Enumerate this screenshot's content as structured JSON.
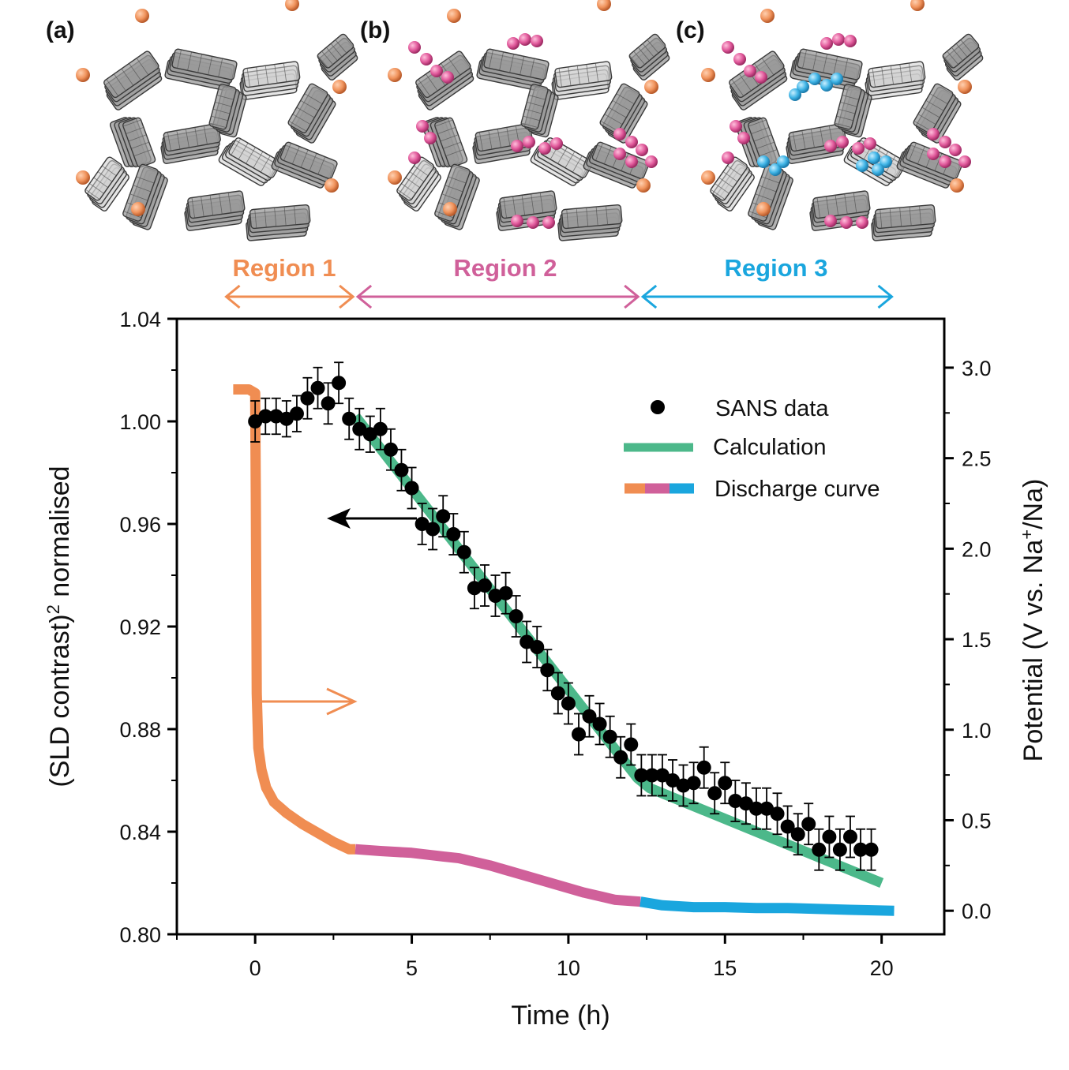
{
  "panels": [
    {
      "label": "(a)"
    },
    {
      "label": "(b)"
    },
    {
      "label": "(c)"
    }
  ],
  "regions": [
    {
      "label": "Region 1",
      "color": "#f08d52",
      "t_start": -1.0,
      "t_end": 3.2
    },
    {
      "label": "Region 2",
      "color": "#d0609a",
      "t_start": 3.2,
      "t_end": 12.3
    },
    {
      "label": "Region 3",
      "color": "#1aa6de",
      "t_start": 12.3,
      "t_end": 20.4
    }
  ],
  "colors": {
    "sans": "#000000",
    "calculation": "#4cb88a",
    "region1": "#f08d52",
    "region2": "#d0609a",
    "region3": "#1aa6de",
    "carbon": "#5a5a5a",
    "sodium_orange": "#f0935c",
    "sodium_pink": "#e0589a",
    "sodium_blue": "#3fb4e6"
  },
  "chart_data": {
    "type": "scatter",
    "xlabel": "Time (h)",
    "ylabel_left": "(SLD contrast)",
    "ylabel_left_sup": "2",
    "ylabel_left_rest": " normalised",
    "ylabel_right": "Potential (V vs. Na",
    "ylabel_right_sup": "+",
    "ylabel_right_rest": "/Na)",
    "xlim": [
      -2.5,
      22
    ],
    "ylim_left": [
      0.8,
      1.04
    ],
    "ylim_right": [
      -0.13,
      3.27
    ],
    "x_ticks": [
      "0",
      "5",
      "10",
      "15",
      "20"
    ],
    "y_ticks_left": [
      "0.80",
      "0.84",
      "0.88",
      "0.92",
      "0.96",
      "1.00",
      "1.04"
    ],
    "y_ticks_right": [
      "0.0",
      "0.5",
      "1.0",
      "1.5",
      "2.0",
      "2.5",
      "3.0"
    ],
    "legend": {
      "placement": "top-right",
      "entries": [
        "SANS data",
        "Calculation",
        "Discharge curve"
      ]
    },
    "sans_data": {
      "name": "SANS data",
      "x": [
        0.0,
        0.33,
        0.67,
        1.0,
        1.33,
        1.67,
        2.0,
        2.33,
        2.67,
        3.0,
        3.33,
        3.67,
        4.0,
        4.33,
        4.67,
        5.0,
        5.33,
        5.67,
        6.0,
        6.33,
        6.67,
        7.0,
        7.33,
        7.67,
        8.0,
        8.33,
        8.67,
        9.0,
        9.33,
        9.67,
        10.0,
        10.33,
        10.67,
        11.0,
        11.33,
        11.67,
        12.0,
        12.33,
        12.67,
        13.0,
        13.33,
        13.67,
        14.0,
        14.33,
        14.67,
        15.0,
        15.33,
        15.67,
        16.0,
        16.33,
        16.67,
        17.0,
        17.33,
        17.67,
        18.0,
        18.33,
        18.67,
        19.0,
        19.33,
        19.67
      ],
      "y": [
        1.0,
        1.002,
        1.002,
        1.001,
        1.003,
        1.009,
        1.013,
        1.007,
        1.015,
        1.001,
        0.997,
        0.995,
        0.997,
        0.989,
        0.981,
        0.974,
        0.96,
        0.958,
        0.963,
        0.956,
        0.949,
        0.935,
        0.936,
        0.932,
        0.933,
        0.924,
        0.914,
        0.912,
        0.903,
        0.894,
        0.89,
        0.878,
        0.885,
        0.882,
        0.877,
        0.869,
        0.874,
        0.862,
        0.862,
        0.862,
        0.86,
        0.858,
        0.859,
        0.865,
        0.855,
        0.859,
        0.852,
        0.851,
        0.849,
        0.849,
        0.847,
        0.842,
        0.839,
        0.843,
        0.833,
        0.838,
        0.833,
        0.838,
        0.833,
        0.833
      ],
      "err": [
        0.008,
        0.007,
        0.007,
        0.007,
        0.007,
        0.008,
        0.008,
        0.008,
        0.008,
        0.008,
        0.008,
        0.007,
        0.008,
        0.008,
        0.008,
        0.008,
        0.008,
        0.008,
        0.008,
        0.008,
        0.008,
        0.008,
        0.008,
        0.008,
        0.008,
        0.008,
        0.008,
        0.008,
        0.008,
        0.008,
        0.008,
        0.008,
        0.008,
        0.008,
        0.008,
        0.008,
        0.008,
        0.008,
        0.008,
        0.008,
        0.008,
        0.008,
        0.008,
        0.008,
        0.008,
        0.008,
        0.008,
        0.008,
        0.008,
        0.008,
        0.008,
        0.008,
        0.008,
        0.008,
        0.008,
        0.008,
        0.008,
        0.008,
        0.008,
        0.008
      ]
    },
    "calculation": {
      "name": "Calculation",
      "x": [
        3.2,
        12.2,
        12.6,
        20.0
      ],
      "y": [
        1.002,
        0.861,
        0.857,
        0.82
      ]
    },
    "discharge_curve": {
      "name": "Discharge curve",
      "x": [
        -0.7,
        -0.2,
        0.0,
        0.02,
        0.05,
        0.1,
        0.2,
        0.35,
        0.6,
        1.0,
        1.5,
        2.0,
        2.5,
        3.0,
        3.2,
        4.0,
        5.0,
        6.0,
        6.5,
        7.5,
        8.5,
        9.5,
        10.5,
        11.5,
        12.3,
        13.0,
        14.0,
        15.0,
        16.0,
        17.0,
        18.0,
        19.0,
        20.4
      ],
      "y": [
        2.88,
        2.88,
        2.86,
        2.3,
        1.2,
        0.9,
        0.78,
        0.68,
        0.6,
        0.54,
        0.48,
        0.43,
        0.38,
        0.34,
        0.34,
        0.33,
        0.32,
        0.3,
        0.29,
        0.25,
        0.2,
        0.15,
        0.1,
        0.06,
        0.05,
        0.03,
        0.02,
        0.02,
        0.015,
        0.015,
        0.01,
        0.005,
        0.0
      ]
    }
  }
}
